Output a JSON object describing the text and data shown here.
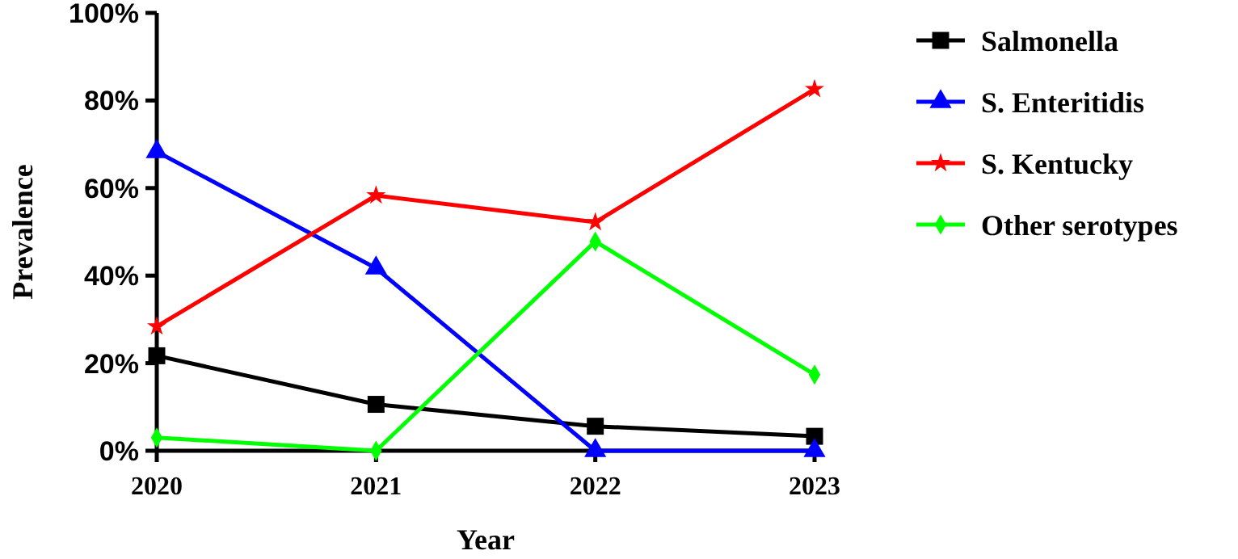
{
  "chart_data": {
    "type": "line",
    "xlabel": "Year",
    "ylabel": "Prevalence",
    "categories": [
      "2020",
      "2021",
      "2022",
      "2023"
    ],
    "ylim": [
      0,
      100
    ],
    "yticks": [
      {
        "value": 0,
        "label": "0%"
      },
      {
        "value": 20,
        "label": "20%"
      },
      {
        "value": 40,
        "label": "40%"
      },
      {
        "value": 60,
        "label": "60%"
      },
      {
        "value": 80,
        "label": "80%"
      },
      {
        "value": 100,
        "label": "100%"
      }
    ],
    "grid": false,
    "legend": "right",
    "line_style": "solid",
    "series": [
      {
        "name": "Salmonella",
        "color": "#000000",
        "marker": "square",
        "values": [
          21.7,
          10.6,
          5.6,
          3.3
        ]
      },
      {
        "name": "S. Enteritidis",
        "color": "#0000ff",
        "marker": "triangle",
        "values": [
          68.3,
          41.7,
          0,
          0
        ]
      },
      {
        "name": "S. Kentucky",
        "color": "#ff0000",
        "marker": "star",
        "values": [
          28.4,
          58.3,
          52.2,
          82.6
        ]
      },
      {
        "name": "Other serotypes",
        "color": "#00ff00",
        "marker": "diamond",
        "values": [
          3,
          0,
          47.8,
          17.4
        ]
      }
    ]
  }
}
